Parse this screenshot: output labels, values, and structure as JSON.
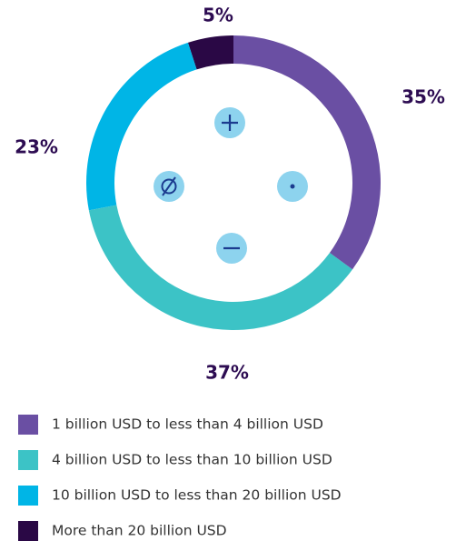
{
  "chart_data": {
    "type": "donut",
    "categories": [
      "1 billion USD to less than 4 billion USD",
      "4 billion USD to less than 10 billion USD",
      "10 billion USD to less than 20 billion USD",
      "More than 20 billion USD"
    ],
    "values": [
      35,
      37,
      23,
      5
    ],
    "value_labels": [
      "35%",
      "37%",
      "23%",
      "5%"
    ],
    "colors": [
      "#6a4fa3",
      "#3cc3c6",
      "#00b5e6",
      "#2a0845"
    ]
  }
}
